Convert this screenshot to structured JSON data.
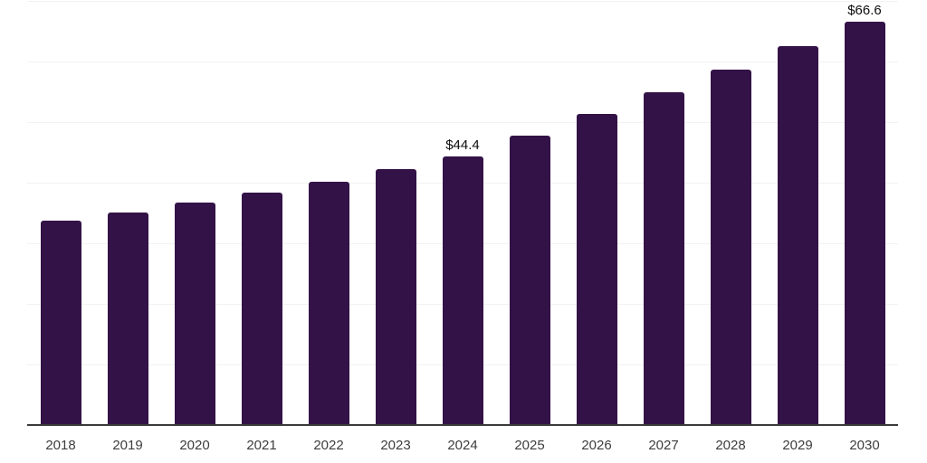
{
  "chart_data": {
    "type": "bar",
    "categories": [
      "2018",
      "2019",
      "2020",
      "2021",
      "2022",
      "2023",
      "2024",
      "2025",
      "2026",
      "2027",
      "2028",
      "2029",
      "2030"
    ],
    "values": [
      33.8,
      35.1,
      36.7,
      38.4,
      40.1,
      42.3,
      44.4,
      47.8,
      51.4,
      54.9,
      58.7,
      62.6,
      66.6
    ],
    "data_labels": [
      {
        "category": "2024",
        "text": "$44.4"
      },
      {
        "category": "2030",
        "text": "$66.6"
      }
    ],
    "title": "",
    "xlabel": "",
    "ylabel": "",
    "ylim": [
      0,
      70
    ],
    "gridline_step": 10,
    "grid": "horizontal-only",
    "legend": "none",
    "y_axis_tick_labels_visible": false,
    "colors": {
      "bar": "#331347",
      "gridline": "#f2f2f2",
      "axis_line": "#3a3a3a",
      "tick_label": "#3d3d3d",
      "data_label": "#0d0d0d",
      "background": "#ffffff"
    }
  }
}
